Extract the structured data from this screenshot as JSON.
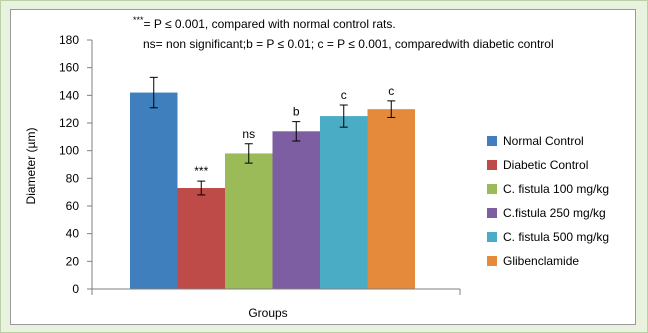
{
  "chart_data": {
    "type": "bar",
    "xlabel": "Groups",
    "ylabel": "Diameter (µm)",
    "ylim": [
      0,
      180
    ],
    "yticks": [
      0,
      20,
      40,
      60,
      80,
      100,
      120,
      140,
      160,
      180
    ],
    "grid": false,
    "legend_position": "right",
    "notes": [
      "***= P ≤ 0.001, compared with normal control rats.",
      "ns= non significant;b = P ≤ 0.01; c = P ≤ 0.001, comparedwith diabetic control"
    ],
    "bars": [
      {
        "name": "Normal Control",
        "value": 142,
        "error": 11,
        "label": "",
        "color": "#3f7fbe"
      },
      {
        "name": "Diabetic Control",
        "value": 73,
        "error": 5,
        "label": "***",
        "color": "#bf4b48"
      },
      {
        "name": "C. fistula  100 mg/kg",
        "value": 98,
        "error": 7,
        "label": "ns",
        "color": "#9bbb59"
      },
      {
        "name": "C.fistula 250 mg/kg",
        "value": 114,
        "error": 7,
        "label": "b",
        "color": "#7e5ea2"
      },
      {
        "name": "C. fistula 500 mg/kg",
        "value": 125,
        "error": 8,
        "label": "c",
        "color": "#4bacc6"
      },
      {
        "name": "Glibenclamide",
        "value": 130,
        "error": 6,
        "label": "c",
        "color": "#e58a3a"
      }
    ]
  }
}
